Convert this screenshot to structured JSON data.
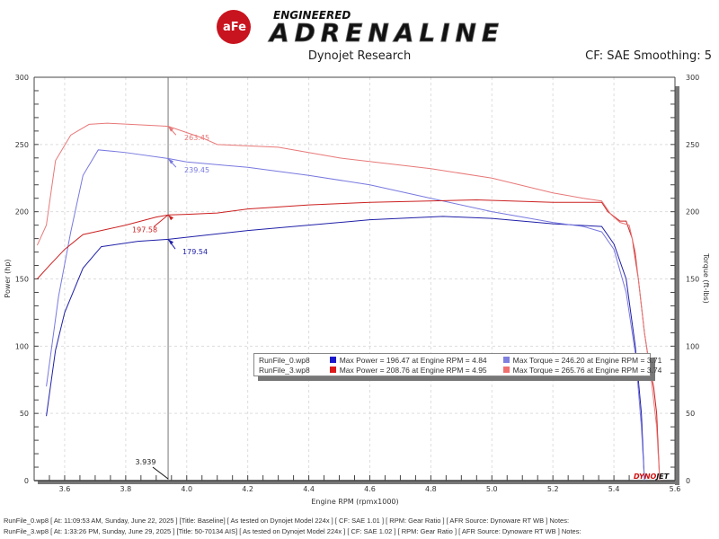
{
  "header": {
    "logo_brand": "aFe POWER",
    "logo_tagline": "ENGINEERED",
    "logo_title": "ADRENALINE",
    "subtitle": "Dynojet Research",
    "cf_label": "CF: SAE Smoothing: 5"
  },
  "watermark": "DYNOJET",
  "chart_data": {
    "type": "line",
    "xlabel": "Engine RPM (rpmx1000)",
    "ylabel_left": "Power (hp)",
    "ylabel_right": "Torque (ft-lbs)",
    "xlim": [
      3.5,
      5.6
    ],
    "ylim": [
      0,
      300
    ],
    "x_ticks": [
      "3.6",
      "3.8",
      "4.0",
      "4.2",
      "4.4",
      "4.6",
      "4.8",
      "5.0",
      "5.2",
      "5.4",
      "5.6"
    ],
    "y_ticks": [
      "0",
      "50",
      "100",
      "150",
      "200",
      "250",
      "300"
    ],
    "grid": true,
    "cursor": {
      "x": 3.939,
      "label": "3.939"
    },
    "series": [
      {
        "name": "RunFile_0.wp8 Power",
        "color": "#2020a8",
        "values": [
          [
            3.54,
            48
          ],
          [
            3.57,
            97
          ],
          [
            3.6,
            125
          ],
          [
            3.66,
            158
          ],
          [
            3.72,
            174
          ],
          [
            3.84,
            178
          ],
          [
            3.94,
            179.5
          ],
          [
            4.0,
            181
          ],
          [
            4.2,
            186
          ],
          [
            4.4,
            190
          ],
          [
            4.6,
            194
          ],
          [
            4.84,
            196.5
          ],
          [
            5.0,
            195
          ],
          [
            5.2,
            191
          ],
          [
            5.36,
            189
          ],
          [
            5.4,
            176
          ],
          [
            5.44,
            150
          ],
          [
            5.47,
            100
          ],
          [
            5.49,
            50
          ],
          [
            5.5,
            0
          ]
        ],
        "callout": "179.54"
      },
      {
        "name": "RunFile_0.wp8 Torque",
        "color": "#7878e0",
        "values": [
          [
            3.54,
            70
          ],
          [
            3.58,
            137
          ],
          [
            3.62,
            185
          ],
          [
            3.66,
            227
          ],
          [
            3.71,
            246
          ],
          [
            3.8,
            244
          ],
          [
            3.94,
            239.5
          ],
          [
            4.0,
            237
          ],
          [
            4.2,
            233
          ],
          [
            4.4,
            227
          ],
          [
            4.6,
            220
          ],
          [
            4.8,
            210
          ],
          [
            5.0,
            200
          ],
          [
            5.2,
            192
          ],
          [
            5.3,
            189
          ],
          [
            5.36,
            185
          ],
          [
            5.4,
            172
          ],
          [
            5.44,
            140
          ],
          [
            5.47,
            95
          ],
          [
            5.49,
            40
          ],
          [
            5.5,
            0
          ]
        ],
        "callout": "239.45"
      },
      {
        "name": "RunFile_3.wp8 Power",
        "color": "#cc2020",
        "values": [
          [
            3.51,
            150
          ],
          [
            3.55,
            160
          ],
          [
            3.6,
            172
          ],
          [
            3.66,
            183
          ],
          [
            3.8,
            190
          ],
          [
            3.9,
            196
          ],
          [
            3.94,
            197.6
          ],
          [
            4.0,
            198
          ],
          [
            4.1,
            199
          ],
          [
            4.2,
            202
          ],
          [
            4.4,
            205
          ],
          [
            4.6,
            207
          ],
          [
            4.95,
            208.8
          ],
          [
            5.2,
            207
          ],
          [
            5.36,
            207
          ],
          [
            5.38,
            200
          ],
          [
            5.42,
            193
          ],
          [
            5.44,
            193
          ],
          [
            5.46,
            180
          ],
          [
            5.48,
            150
          ],
          [
            5.5,
            110
          ],
          [
            5.52,
            80
          ],
          [
            5.53,
            70
          ],
          [
            5.54,
            50
          ],
          [
            5.55,
            0
          ]
        ],
        "callout": "197.58"
      },
      {
        "name": "RunFile_3.wp8 Torque",
        "color": "#e87878",
        "values": [
          [
            3.51,
            175
          ],
          [
            3.54,
            190
          ],
          [
            3.57,
            238
          ],
          [
            3.62,
            257
          ],
          [
            3.68,
            265
          ],
          [
            3.74,
            265.8
          ],
          [
            3.9,
            264
          ],
          [
            3.94,
            263.5
          ],
          [
            4.05,
            255
          ],
          [
            4.1,
            250
          ],
          [
            4.3,
            248
          ],
          [
            4.5,
            240
          ],
          [
            4.8,
            232
          ],
          [
            5.0,
            225
          ],
          [
            5.2,
            214
          ],
          [
            5.3,
            210
          ],
          [
            5.36,
            208
          ],
          [
            5.39,
            198
          ],
          [
            5.42,
            192
          ],
          [
            5.45,
            190
          ],
          [
            5.47,
            170
          ],
          [
            5.5,
            110
          ],
          [
            5.52,
            80
          ],
          [
            5.54,
            40
          ],
          [
            5.55,
            0
          ]
        ],
        "callout": "263.45"
      }
    ],
    "legend": [
      {
        "run": "RunFile_0.wp8",
        "power": "Max Power = 196.47 at Engine RPM = 4.84",
        "torque": "Max Torque = 246.20 at Engine RPM = 3.71",
        "power_color": "#1a1acc",
        "torque_color": "#8080e0"
      },
      {
        "run": "RunFile_3.wp8",
        "power": "Max Power = 208.76 at Engine RPM = 4.95",
        "torque": "Max Torque = 265.76 at Engine RPM = 3.74",
        "power_color": "#dd1a1a",
        "torque_color": "#f07070"
      }
    ]
  },
  "footer": [
    "RunFile_0.wp8 [ At: 11:09:53 AM, Sunday, June 22, 2025 ] [Title: Baseline]  [ As tested on Dynojet Model 224x ] [ CF: SAE 1.01 ] [ RPM: Gear Ratio ] [ AFR Source: Dynoware RT WB ] Notes:",
    "RunFile_3.wp8 [ At: 1:33:26 PM, Sunday, June 29, 2025 ] [Title: 50-70134 AIS]  [ As tested on Dynojet Model 224x ] [ CF: SAE 1.02 ] [ RPM: Gear Ratio ] [ AFR Source: Dynoware RT WB ] Notes:"
  ]
}
